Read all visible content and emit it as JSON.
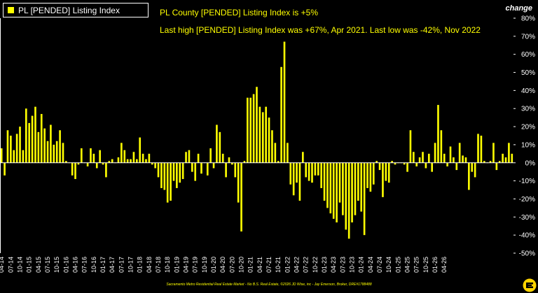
{
  "legend": {
    "label": "PL [PENDED] Listing Index",
    "color": "#ffff00"
  },
  "headline": {
    "line1": "PL County [PENDED] Listing Index is +5%",
    "line2": "Last high [PENDED] Listing Index was +67%, Apr 2021. Last low was -42%, Nov 2022"
  },
  "change_label": "change",
  "footer": "Sacramento Metro Residential Real Estate Market - No B.S. Real Estate, ©2026 JD Wise, inc - Jay Emerson, Broker, DRE#1788488",
  "logo_icon": "e-badge-icon",
  "colors": {
    "background": "#000000",
    "bar": "#ffff00",
    "axis_text": "#ffffff",
    "zero_line": "#ffffff"
  },
  "chart_data": {
    "type": "bar",
    "title": "",
    "xlabel": "",
    "ylabel": "change",
    "ylim": [
      -50,
      80
    ],
    "yticks": [
      -50,
      -40,
      -30,
      -20,
      -10,
      0,
      10,
      20,
      30,
      40,
      50,
      60,
      70,
      80
    ],
    "ytick_labels": [
      "-50%",
      "-40%",
      "-30%",
      "-20%",
      "-10%",
      "0%",
      "10%",
      "20%",
      "30%",
      "40%",
      "50%",
      "60%",
      "70%",
      "80%"
    ],
    "grid": false,
    "legend": "top-left",
    "start_month": "2014-04",
    "x_tick_labels": [
      "04-14",
      "07-14",
      "10-14",
      "01-15",
      "04-15",
      "07-15",
      "10-15",
      "01-16",
      "04-16",
      "07-16",
      "10-16",
      "01-17",
      "04-17",
      "07-17",
      "10-17",
      "01-18",
      "04-18",
      "07-18",
      "10-18",
      "01-19",
      "04-19",
      "07-19",
      "10-19",
      "01-20",
      "04-20",
      "07-20",
      "10-20",
      "01-21",
      "04-21",
      "07-21",
      "10-21",
      "01-22",
      "04-22",
      "07-22",
      "10-22",
      "01-23",
      "04-23",
      "07-23",
      "10-23",
      "01-24",
      "04-24",
      "07-24",
      "10-24",
      "01-25",
      "04-25",
      "07-25",
      "10-25",
      "01-26",
      "04-26"
    ],
    "series": [
      {
        "name": "PL [PENDED] Listing Index",
        "values": [
          8,
          -7,
          18,
          15,
          7,
          16,
          20,
          7,
          30,
          22,
          26,
          31,
          17,
          27,
          19,
          12,
          21,
          10,
          12,
          18,
          11,
          1,
          0,
          -7,
          -9,
          -1,
          8,
          0,
          -2,
          8,
          5,
          -3,
          7,
          -1,
          -8,
          1,
          2,
          0,
          3,
          11,
          7,
          2,
          2,
          6,
          2,
          14,
          5,
          2,
          5,
          -1,
          -3,
          -8,
          -14,
          -15,
          -22,
          -21,
          -10,
          -14,
          -11,
          -9,
          6,
          7,
          -5,
          -10,
          5,
          -6,
          0,
          -7,
          8,
          -3,
          21,
          17,
          5,
          -8,
          3,
          -1,
          -8,
          -22,
          -38,
          1,
          36,
          36,
          38,
          42,
          31,
          28,
          31,
          25,
          18,
          11,
          1,
          53,
          67,
          11,
          -12,
          -18,
          -11,
          -21,
          6,
          -8,
          -10,
          -11,
          -7,
          -7,
          -14,
          -21,
          -25,
          -28,
          -31,
          -33,
          -22,
          -29,
          -37,
          -42,
          -33,
          -29,
          -21,
          -27,
          -40,
          -14,
          -16,
          -12,
          1,
          -4,
          -19,
          -10,
          -11,
          1,
          -1,
          0,
          0,
          -1,
          -5,
          18,
          6,
          -2,
          3,
          6,
          -3,
          5,
          -5,
          11,
          32,
          18,
          5,
          -2,
          9,
          3,
          -4,
          11,
          4,
          3,
          -15,
          -5,
          -8,
          16,
          15,
          1,
          0,
          1,
          11,
          -4,
          1,
          5,
          3,
          11,
          5
        ]
      }
    ]
  }
}
